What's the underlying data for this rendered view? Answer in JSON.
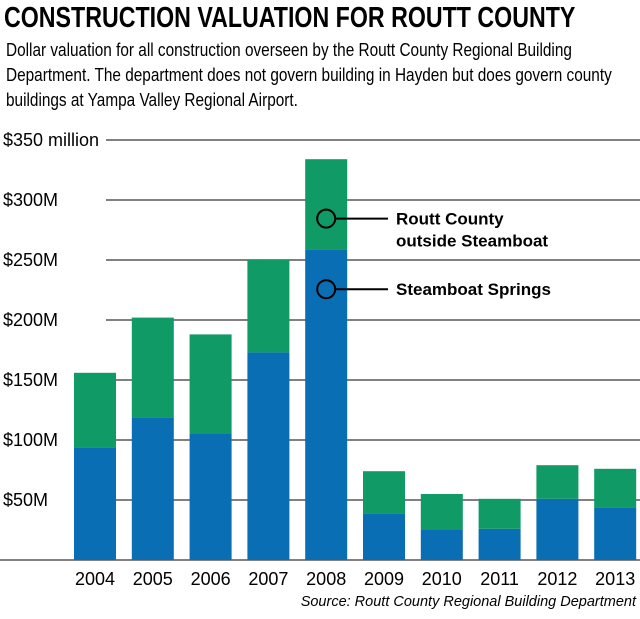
{
  "title": "CONSTRUCTION VALUATION FOR ROUTT COUNTY",
  "subtitle": "Dollar valuation for all construction overseen by the Routt County Regional Building Department. The department does not govern building in Hayden but does govern county buildings at Yampa Valley Regional Airport.",
  "source": "Source: Routt County Regional Building Department",
  "chart_data": {
    "type": "bar",
    "stacked": true,
    "categories": [
      "2004",
      "2005",
      "2006",
      "2007",
      "2008",
      "2009",
      "2010",
      "2011",
      "2012",
      "2013"
    ],
    "series": [
      {
        "name": "Steamboat Springs",
        "color": "#0a6eb4",
        "values": [
          94,
          119,
          105,
          173,
          259,
          39,
          25,
          26,
          51,
          44
        ]
      },
      {
        "name": "Routt County outside Steamboat",
        "color": "#0f9a66",
        "values": [
          62,
          83,
          83,
          77,
          75,
          35,
          30,
          25,
          28,
          32
        ]
      }
    ],
    "ylim": [
      0,
      350
    ],
    "yticks": [
      {
        "value": 350,
        "label": "$350 million"
      },
      {
        "value": 300,
        "label": "$300M"
      },
      {
        "value": 250,
        "label": "$250M"
      },
      {
        "value": 200,
        "label": "$200M"
      },
      {
        "value": 150,
        "label": "$150M"
      },
      {
        "value": 100,
        "label": "$100M"
      },
      {
        "value": 50,
        "label": "$50M"
      }
    ],
    "annotations": [
      {
        "series": 1,
        "category": "2008",
        "lines": [
          "Routt County",
          "outside Steamboat"
        ]
      },
      {
        "series": 0,
        "category": "2008",
        "lines": [
          "Steamboat Springs"
        ]
      }
    ],
    "grid": true
  }
}
